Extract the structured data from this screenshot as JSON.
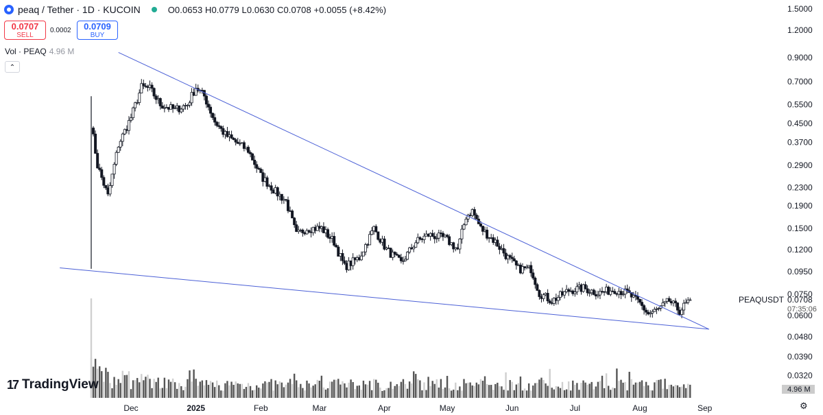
{
  "header": {
    "pair": "peaq / Tether · 1D · KUCOIN",
    "ohlc": "O0.0653 H0.0779 L0.0630 C0.0708 +0.0055 (+8.42%)"
  },
  "trade": {
    "sell_price": "0.0707",
    "sell_label": "SELL",
    "spread": "0.0002",
    "buy_price": "0.0709",
    "buy_label": "BUY"
  },
  "volume_label": {
    "name": "Vol · PEAQ",
    "value": "4.96 M"
  },
  "collapse_icon": "chevron-up-icon",
  "brand": {
    "name": "TradingView",
    "icon": "tradingview-logo-icon"
  },
  "settings_icon": "gear-icon",
  "colors": {
    "trendline": "#4a5fd6",
    "candle_up": "#ffffff",
    "candle_down": "#131722",
    "volume": "#555555",
    "price_tag_bg": "#cccccc"
  },
  "chart_data": {
    "type": "candlestick",
    "symbol": "PEAQUSDT",
    "last_price": "0.0708",
    "countdown": "07:35:06",
    "volume_last": "4.96 M",
    "scale": "log",
    "grid": false,
    "y_ticks": [
      "1.5000",
      "1.2000",
      "0.9000",
      "0.7000",
      "0.5500",
      "0.4500",
      "0.3700",
      "0.2900",
      "0.2300",
      "0.1900",
      "0.1500",
      "0.1200",
      "0.0950",
      "0.0750",
      "0.0600",
      "0.0480",
      "0.0390",
      "0.0320"
    ],
    "x_ticks": [
      "Dec",
      "2025",
      "Feb",
      "Mar",
      "Apr",
      "May",
      "Jun",
      "Jul",
      "Aug",
      "Sep"
    ],
    "x_range": [
      "2024-11-12",
      "2025-09-08"
    ],
    "y_range": [
      0.029,
      1.6
    ],
    "anchors": [
      [
        "2024-11-12",
        0.45
      ],
      [
        "2024-11-15",
        0.29
      ],
      [
        "2024-11-20",
        0.21
      ],
      [
        "2024-11-25",
        0.36
      ],
      [
        "2024-12-01",
        0.48
      ],
      [
        "2024-12-06",
        0.66
      ],
      [
        "2024-12-10",
        0.65
      ],
      [
        "2024-12-15",
        0.55
      ],
      [
        "2024-12-22",
        0.52
      ],
      [
        "2024-12-28",
        0.55
      ],
      [
        "2025-01-01",
        0.66
      ],
      [
        "2025-01-05",
        0.6
      ],
      [
        "2025-01-10",
        0.46
      ],
      [
        "2025-01-15",
        0.4
      ],
      [
        "2025-01-20",
        0.37
      ],
      [
        "2025-01-26",
        0.34
      ],
      [
        "2025-02-01",
        0.26
      ],
      [
        "2025-02-08",
        0.22
      ],
      [
        "2025-02-13",
        0.2
      ],
      [
        "2025-02-18",
        0.14
      ],
      [
        "2025-02-23",
        0.15
      ],
      [
        "2025-03-02",
        0.15
      ],
      [
        "2025-03-08",
        0.13
      ],
      [
        "2025-03-13",
        0.1
      ],
      [
        "2025-03-20",
        0.11
      ],
      [
        "2025-03-27",
        0.15
      ],
      [
        "2025-04-02",
        0.12
      ],
      [
        "2025-04-09",
        0.104
      ],
      [
        "2025-04-16",
        0.13
      ],
      [
        "2025-04-22",
        0.14
      ],
      [
        "2025-04-30",
        0.135
      ],
      [
        "2025-05-06",
        0.12
      ],
      [
        "2025-05-10",
        0.17
      ],
      [
        "2025-05-13",
        0.18
      ],
      [
        "2025-05-17",
        0.15
      ],
      [
        "2025-05-24",
        0.13
      ],
      [
        "2025-05-30",
        0.11
      ],
      [
        "2025-06-04",
        0.098
      ],
      [
        "2025-06-10",
        0.098
      ],
      [
        "2025-06-14",
        0.076
      ],
      [
        "2025-06-20",
        0.07
      ],
      [
        "2025-06-28",
        0.078
      ],
      [
        "2025-07-05",
        0.08
      ],
      [
        "2025-07-12",
        0.076
      ],
      [
        "2025-07-20",
        0.079
      ],
      [
        "2025-07-26",
        0.076
      ],
      [
        "2025-08-01",
        0.068
      ],
      [
        "2025-08-05",
        0.061
      ],
      [
        "2025-08-10",
        0.064
      ],
      [
        "2025-08-15",
        0.07
      ],
      [
        "2025-08-20",
        0.063
      ],
      [
        "2025-08-25",
        0.0708
      ]
    ],
    "spike_candle": {
      "date": "2024-11-12",
      "high": 0.6,
      "low": 0.098
    },
    "trendlines": [
      {
        "name": "upper",
        "from": [
          "2024-11-25",
          0.95
        ],
        "to": [
          "2025-09-03",
          0.052
        ]
      },
      {
        "name": "lower",
        "from": [
          "2024-10-28",
          0.099
        ],
        "to": [
          "2025-09-03",
          0.052
        ]
      }
    ]
  }
}
